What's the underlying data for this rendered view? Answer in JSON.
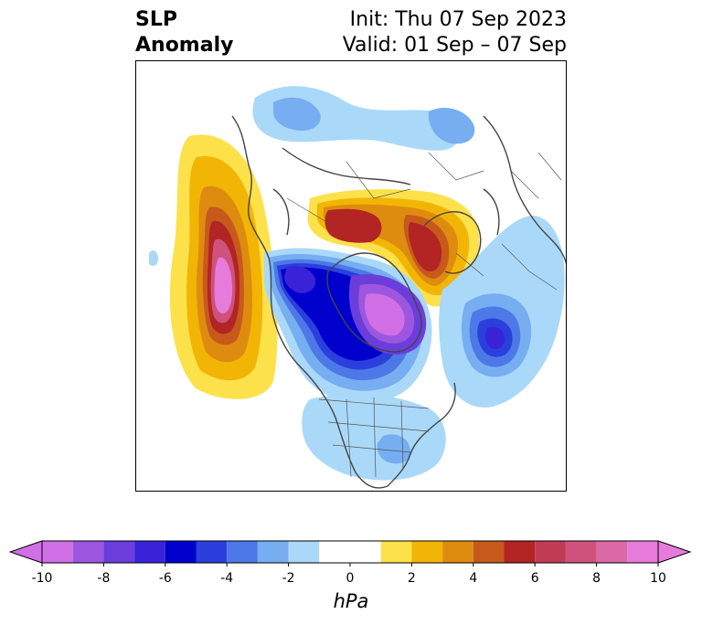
{
  "header": {
    "title_line1": "SLP",
    "title_line2": "Anomaly",
    "init_text": "Init: Thu 07 Sep 2023",
    "valid_text": "Valid: 01 Sep – 07 Sep"
  },
  "colorbar": {
    "units": "hPa",
    "ticks": [
      "-10",
      "-8",
      "-6",
      "-4",
      "-2",
      "0",
      "2",
      "4",
      "6",
      "8",
      "10"
    ],
    "bins": [
      {
        "range": [
          -10,
          -9
        ],
        "color": "#d16fe6"
      },
      {
        "range": [
          -9,
          -8
        ],
        "color": "#9d56df"
      },
      {
        "range": [
          -8,
          -7
        ],
        "color": "#6b3ddb"
      },
      {
        "range": [
          -7,
          -6
        ],
        "color": "#3a22d8"
      },
      {
        "range": [
          -6,
          -5
        ],
        "color": "#0000cc"
      },
      {
        "range": [
          -5,
          -4
        ],
        "color": "#2a3fdc"
      },
      {
        "range": [
          -4,
          -3
        ],
        "color": "#4d78e8"
      },
      {
        "range": [
          -3,
          -2
        ],
        "color": "#76aef1"
      },
      {
        "range": [
          -2,
          -1
        ],
        "color": "#aad8f8"
      },
      {
        "range": [
          -1,
          1
        ],
        "color": "#ffffff"
      },
      {
        "range": [
          1,
          2
        ],
        "color": "#fde14b"
      },
      {
        "range": [
          2,
          3
        ],
        "color": "#f2b505"
      },
      {
        "range": [
          3,
          4
        ],
        "color": "#de8c0f"
      },
      {
        "range": [
          4,
          5
        ],
        "color": "#c75a1b"
      },
      {
        "range": [
          5,
          6
        ],
        "color": "#b32424"
      },
      {
        "range": [
          6,
          7
        ],
        "color": "#c13b55"
      },
      {
        "range": [
          7,
          8
        ],
        "color": "#cf527c"
      },
      {
        "range": [
          8,
          9
        ],
        "color": "#db69a8"
      },
      {
        "range": [
          9,
          10
        ],
        "color": "#e67bdb"
      }
    ],
    "extend_low_color": "#d16fe6",
    "extend_high_color": "#e67bdb"
  },
  "map": {
    "projection": "polar-stereographic-north",
    "features": [
      "pacific-high-anomaly",
      "arctic-low-anomaly",
      "atlantic-low-anomaly",
      "siberia-high-anomaly",
      "canada-low-anomaly"
    ]
  }
}
